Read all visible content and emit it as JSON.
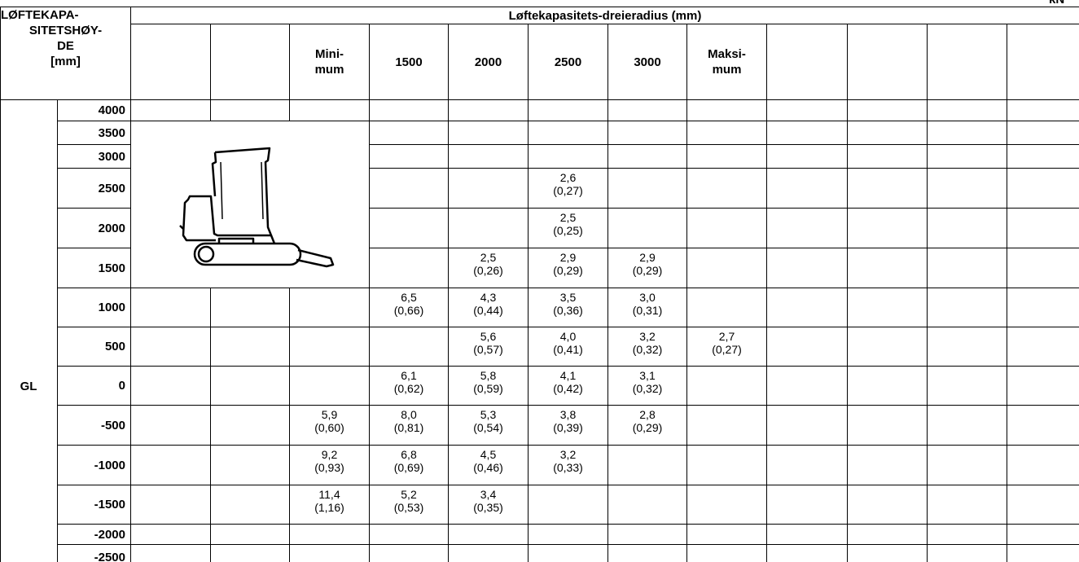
{
  "header": {
    "unit": "kN (t)",
    "corner": [
      "LØFTEKAPA-",
      "SITETSHØY-",
      "DE",
      "[mm]"
    ],
    "title": "Løftekapasitets-dreieradius (mm)",
    "columns": [
      null,
      null,
      [
        "Mini-",
        "mum"
      ],
      "1500",
      "2000",
      "2500",
      "3000",
      [
        "Maksi-",
        "mum"
      ],
      null,
      null,
      null,
      null
    ]
  },
  "rows": [
    {
      "height": "4000",
      "cells": [
        null,
        null,
        null,
        null,
        null,
        null,
        null,
        null,
        null,
        null,
        null,
        null
      ]
    },
    {
      "height": "3500",
      "cells": [
        null,
        null,
        null,
        null,
        null,
        null,
        null,
        null,
        null,
        null,
        null,
        null
      ]
    },
    {
      "height": "3000",
      "cells": [
        null,
        null,
        null,
        null,
        null,
        null,
        null,
        null,
        null,
        null,
        null,
        null
      ]
    },
    {
      "height": "2500",
      "cells": [
        null,
        null,
        null,
        null,
        null,
        [
          "2,6",
          "(0,27)"
        ],
        null,
        null,
        null,
        null,
        null,
        null
      ]
    },
    {
      "height": "2000",
      "cells": [
        null,
        null,
        null,
        null,
        null,
        [
          "2,5",
          "(0,25)"
        ],
        null,
        null,
        null,
        null,
        null,
        null
      ]
    },
    {
      "height": "1500",
      "cells": [
        null,
        null,
        null,
        null,
        [
          "2,5",
          "(0,26)"
        ],
        [
          "2,9",
          "(0,29)"
        ],
        [
          "2,9",
          "(0,29)"
        ],
        null,
        null,
        null,
        null,
        null
      ]
    },
    {
      "height": "1000",
      "cells": [
        null,
        null,
        null,
        [
          "6,5",
          "(0,66)"
        ],
        [
          "4,3",
          "(0,44)"
        ],
        [
          "3,5",
          "(0,36)"
        ],
        [
          "3,0",
          "(0,31)"
        ],
        null,
        null,
        null,
        null,
        null
      ]
    },
    {
      "height": "500",
      "cells": [
        null,
        null,
        null,
        null,
        [
          "5,6",
          "(0,57)"
        ],
        [
          "4,0",
          "(0,41)"
        ],
        [
          "3,2",
          "(0,32)"
        ],
        [
          "2,7",
          "(0,27)"
        ],
        null,
        null,
        null,
        null
      ]
    },
    {
      "height": "0",
      "label": "GL",
      "cells": [
        null,
        null,
        null,
        [
          "6,1",
          "(0,62)"
        ],
        [
          "5,8",
          "(0,59)"
        ],
        [
          "4,1",
          "(0,42)"
        ],
        [
          "3,1",
          "(0,32)"
        ],
        null,
        null,
        null,
        null,
        null
      ]
    },
    {
      "height": "-500",
      "cells": [
        null,
        null,
        [
          "5,9",
          "(0,60)"
        ],
        [
          "8,0",
          "(0,81)"
        ],
        [
          "5,3",
          "(0,54)"
        ],
        [
          "3,8",
          "(0,39)"
        ],
        [
          "2,8",
          "(0,29)"
        ],
        null,
        null,
        null,
        null,
        null
      ]
    },
    {
      "height": "-1000",
      "cells": [
        null,
        null,
        [
          "9,2",
          "(0,93)"
        ],
        [
          "6,8",
          "(0,69)"
        ],
        [
          "4,5",
          "(0,46)"
        ],
        [
          "3,2",
          "(0,33)"
        ],
        null,
        null,
        null,
        null,
        null,
        null
      ]
    },
    {
      "height": "-1500",
      "cells": [
        null,
        null,
        [
          "11,4",
          "(1,16)"
        ],
        [
          "5,2",
          "(0,53)"
        ],
        [
          "3,4",
          "(0,35)"
        ],
        null,
        null,
        null,
        null,
        null,
        null,
        null
      ]
    },
    {
      "height": "-2000",
      "cells": [
        null,
        null,
        null,
        null,
        null,
        null,
        null,
        null,
        null,
        null,
        null,
        null
      ]
    },
    {
      "height": "-2500",
      "cells": [
        null,
        null,
        null,
        null,
        null,
        null,
        null,
        null,
        null,
        null,
        null,
        null
      ]
    }
  ]
}
